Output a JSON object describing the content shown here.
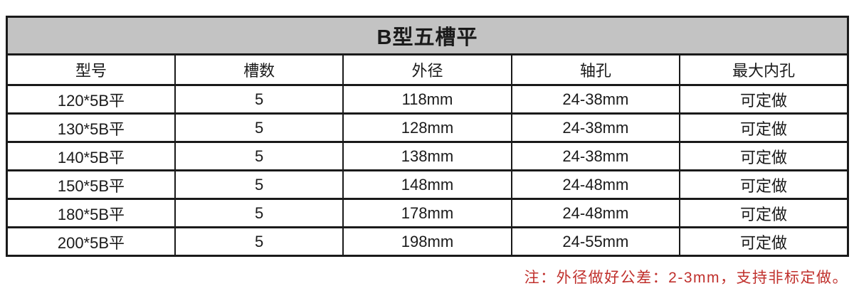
{
  "table": {
    "title": "B型五槽平",
    "columns": [
      "型号",
      "槽数",
      "外径",
      "轴孔",
      "最大内孔"
    ],
    "rows": [
      [
        "120*5B平",
        "5",
        "118mm",
        "24-38mm",
        "可定做"
      ],
      [
        "130*5B平",
        "5",
        "128mm",
        "24-38mm",
        "可定做"
      ],
      [
        "140*5B平",
        "5",
        "138mm",
        "24-38mm",
        "可定做"
      ],
      [
        "150*5B平",
        "5",
        "148mm",
        "24-48mm",
        "可定做"
      ],
      [
        "180*5B平",
        "5",
        "178mm",
        "24-48mm",
        "可定做"
      ],
      [
        "200*5B平",
        "5",
        "198mm",
        "24-55mm",
        "可定做"
      ]
    ]
  },
  "note": {
    "text": "注：外径做好公差：2-3mm，支持非标定做。"
  },
  "colors": {
    "title_bg": "#c3c3c3",
    "border": "#1a1a1a",
    "text": "#1a1a1a",
    "note_red": "#c0302c",
    "background": "#ffffff"
  },
  "chart_data": {
    "type": "table",
    "title": "B型五槽平",
    "categories": [
      "型号",
      "槽数",
      "外径",
      "轴孔",
      "最大内孔"
    ],
    "values": [
      [
        "120*5B平",
        "5",
        "118mm",
        "24-38mm",
        "可定做"
      ],
      [
        "130*5B平",
        "5",
        "128mm",
        "24-38mm",
        "可定做"
      ],
      [
        "140*5B平",
        "5",
        "138mm",
        "24-38mm",
        "可定做"
      ],
      [
        "150*5B平",
        "5",
        "148mm",
        "24-48mm",
        "可定做"
      ],
      [
        "180*5B平",
        "5",
        "178mm",
        "24-48mm",
        "可定做"
      ],
      [
        "200*5B平",
        "5",
        "198mm",
        "24-55mm",
        "可定做"
      ]
    ]
  }
}
